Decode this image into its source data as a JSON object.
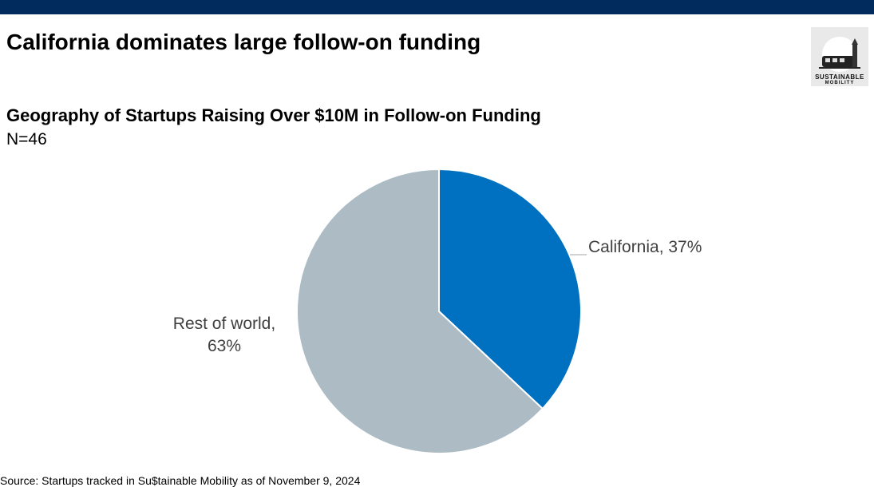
{
  "header": {
    "title": "California dominates large follow-on funding"
  },
  "logo": {
    "line1": "SUSTAINABLE",
    "line2": "MOBILITY"
  },
  "chart_data": {
    "type": "pie",
    "title": "Geography of Startups Raising Over $10M in Follow-on Funding",
    "subtitle": "N=46",
    "values": [
      37,
      63
    ],
    "value_labels": [
      "California, 37%",
      "Rest of world, 63%"
    ],
    "colors": [
      "#0070c0",
      "#adbcc4"
    ]
  },
  "footer": {
    "source": "Source: Startups tracked in Su$tainable Mobility as of November 9, 2024"
  }
}
